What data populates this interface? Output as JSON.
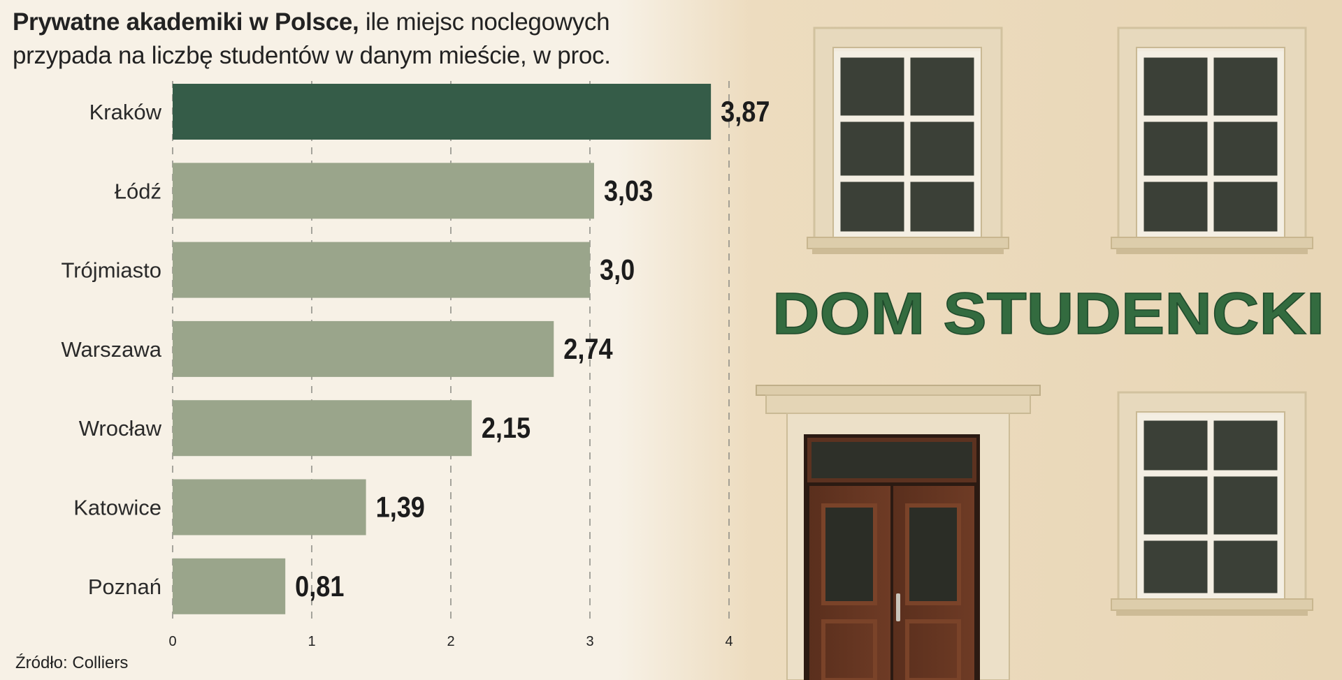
{
  "title_bold": "Prywatne akademiki w Polsce,",
  "title_rest": " ile miejsc noclegowych przypada na liczbę studentów w danym mieście, w proc.",
  "source": "Źródło: Colliers",
  "building_sign": "DOM STUDENCKI",
  "colors": {
    "highlight_bar": "#355c48",
    "bar": "#9aa58b",
    "background": "#f7f1e6",
    "sign_text": "#336b3f"
  },
  "chart_data": {
    "type": "bar",
    "orientation": "horizontal",
    "categories": [
      "Kraków",
      "Łódź",
      "Trójmiasto",
      "Warszawa",
      "Wrocław",
      "Katowice",
      "Poznań"
    ],
    "values": [
      3.87,
      3.03,
      3.0,
      2.74,
      2.15,
      1.39,
      0.81
    ],
    "value_labels": [
      "3,87",
      "3,03",
      "3,0",
      "2,74",
      "2,15",
      "1,39",
      "0,81"
    ],
    "highlight_index": 0,
    "xlim": [
      0,
      4
    ],
    "xticks": [
      "0",
      "1",
      "2",
      "3",
      "4"
    ],
    "grid": "vertical dashed"
  }
}
